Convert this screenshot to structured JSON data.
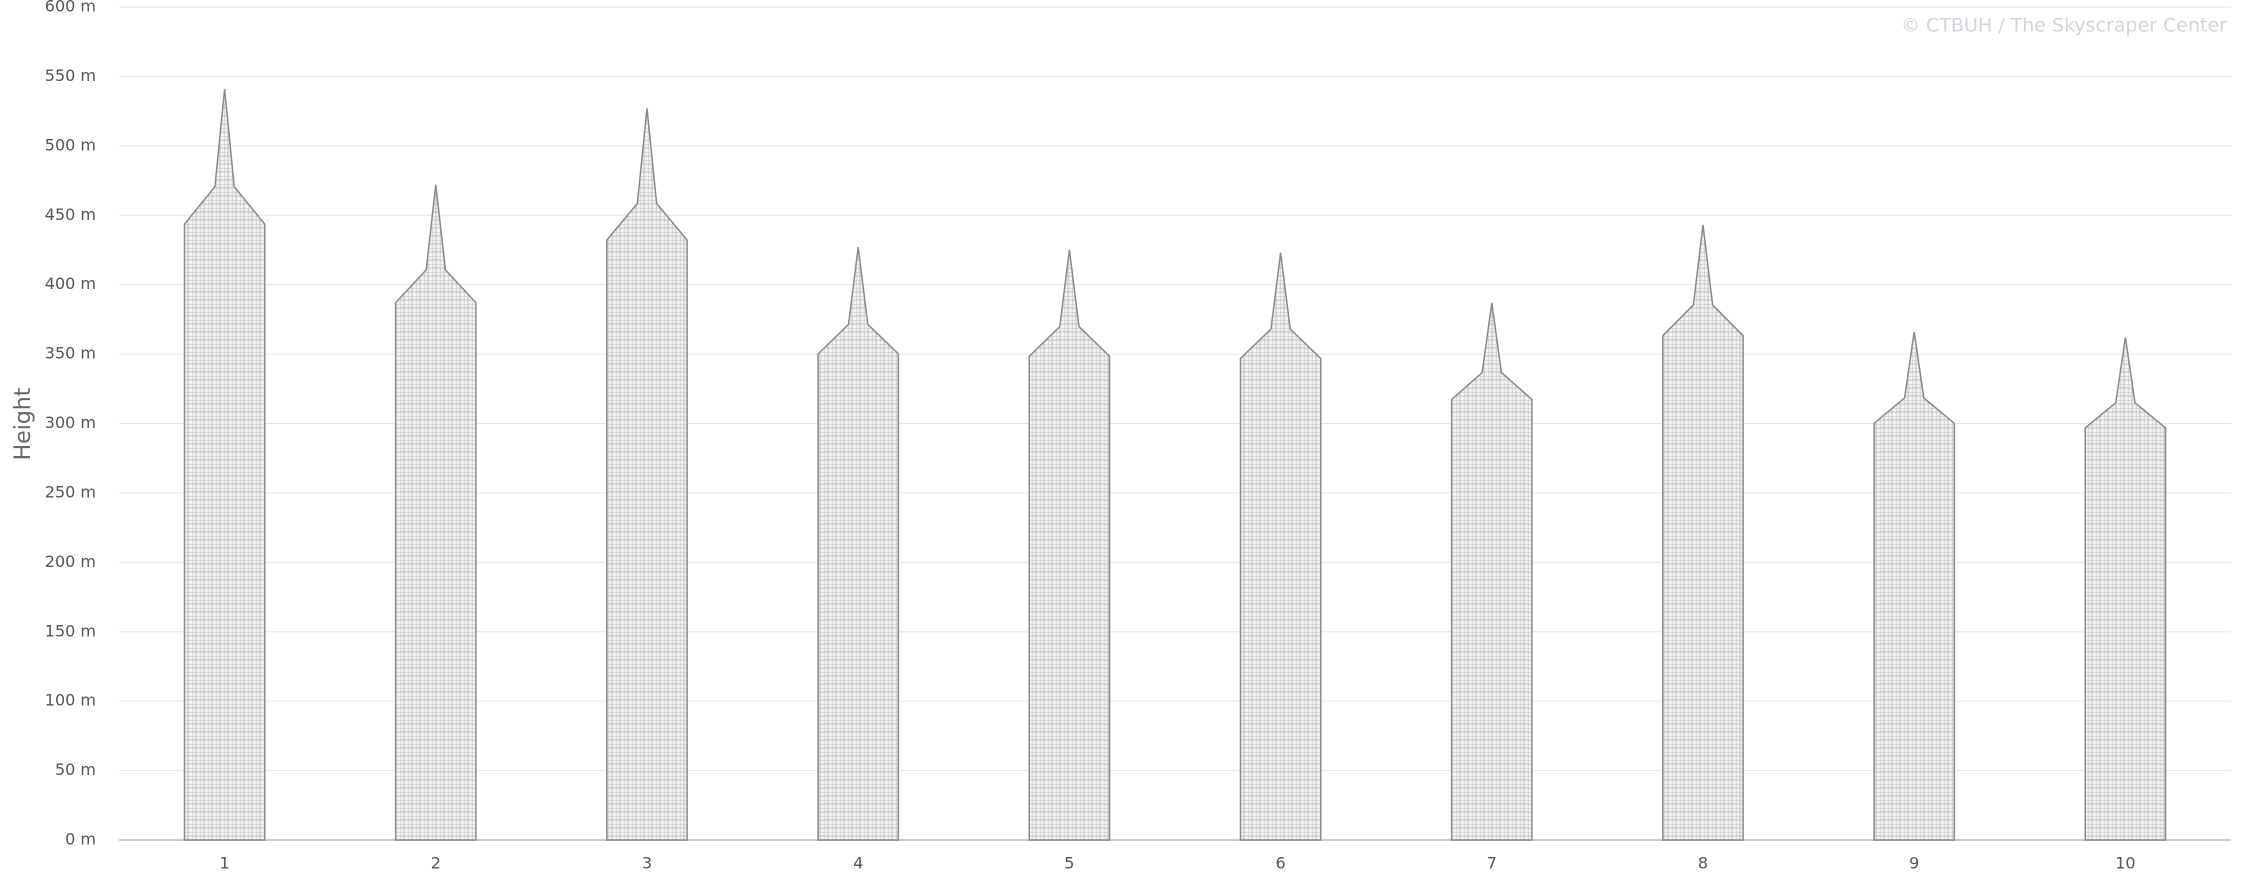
{
  "chart_data": {
    "type": "skyline",
    "source": "© CTBUH / The Skyscraper Center",
    "ylabel": "Height",
    "categories": [
      "1",
      "2",
      "3",
      "4",
      "5",
      "6",
      "7",
      "8",
      "9",
      "10"
    ],
    "values": [
      541,
      472,
      527,
      427,
      425,
      423,
      387,
      443,
      366,
      362
    ],
    "color": "#8a8a8a",
    "ylim": [
      0,
      600
    ],
    "yticks": [
      {
        "value": 0,
        "label": "0 m"
      },
      {
        "value": 50,
        "label": "50 m"
      },
      {
        "value": 100,
        "label": "100 m"
      },
      {
        "value": 150,
        "label": "150 m"
      },
      {
        "value": 200,
        "label": "200 m"
      },
      {
        "value": 250,
        "label": "250 m"
      },
      {
        "value": 300,
        "label": "300 m"
      },
      {
        "value": 350,
        "label": "350 m"
      },
      {
        "value": 400,
        "label": "400 m"
      },
      {
        "value": 450,
        "label": "450 m"
      },
      {
        "value": 500,
        "label": "500 m"
      },
      {
        "value": 550,
        "label": "550 m"
      },
      {
        "value": 600,
        "label": "600 m"
      }
    ],
    "grid": true
  }
}
